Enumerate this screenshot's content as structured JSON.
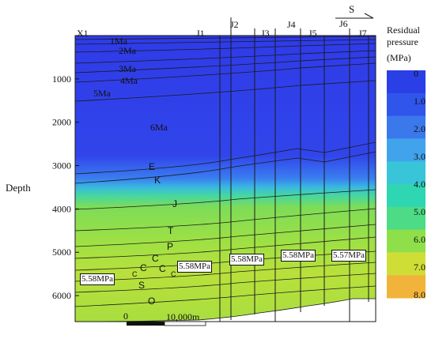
{
  "chart_data": {
    "type": "heatmap",
    "ylabel": "Depth",
    "y_ticks": [
      1000,
      2000,
      3000,
      4000,
      5000,
      6000
    ],
    "ylim": [
      0,
      6600
    ],
    "direction_label": "S",
    "wells": [
      "X1",
      "J1",
      "J2",
      "J3",
      "J4",
      "J5",
      "J6",
      "J7"
    ],
    "colorbar": {
      "title_line1": "Residual",
      "title_line2": "pressure",
      "unit": "(MPa)",
      "ticks": [
        "0",
        "1.0",
        "2.0",
        "3.0",
        "4.0",
        "5.0",
        "6.0",
        "7.0",
        "8.0"
      ],
      "colors": [
        "#2a3fe6",
        "#2f55ea",
        "#3a78ec",
        "#41a3ec",
        "#38c5d8",
        "#2ed6b2",
        "#4ddb86",
        "#8fdf4b",
        "#cfde36",
        "#f1b33a"
      ]
    },
    "horizon_labels": [
      "1Ma",
      "2Ma",
      "3Ma",
      "4Ma",
      "5Ma",
      "6Ma",
      "E",
      "K",
      "J",
      "T",
      "P",
      "C",
      "C",
      "C",
      "C",
      "C",
      "S",
      "O"
    ],
    "pressure_annotations": [
      "5.58MPa",
      "5.58MPa",
      "5.58MPa",
      "5.58MPa",
      "5.57MPa"
    ],
    "scale_bar": {
      "start_label": "0",
      "end_label": "10,000m"
    }
  }
}
